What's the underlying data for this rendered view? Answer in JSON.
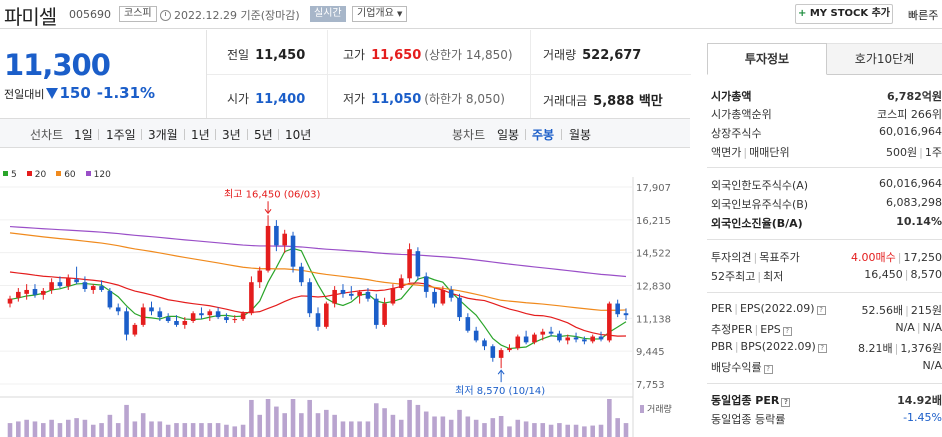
{
  "header": {
    "stock_name": "파미셀",
    "stock_code": "005690",
    "market": "코스피",
    "date_text": "2022.12.29  기준(장마감)",
    "realtime_label": "실시간",
    "overview_label": "기업개요",
    "mystock_label": "MY STOCK 추가",
    "quick_label": "빠른주",
    "plus": "+"
  },
  "price": {
    "current": "11,300",
    "change_label": "전일대비",
    "change_amount": "150",
    "change_percent": "-1.31%"
  },
  "quote": {
    "prev_close_label": "전일",
    "prev_close": "11,450",
    "high_label": "고가",
    "high": "11,650",
    "upper_limit_text": "(상한가 14,850)",
    "volume_label": "거래량",
    "volume": "522,677",
    "open_label": "시가",
    "open": "11,400",
    "low_label": "저가",
    "low": "11,050",
    "lower_limit_text": "(하한가 8,050)",
    "amount_label": "거래대금",
    "amount": "5,888 백만"
  },
  "periods": {
    "line_label": "선차트",
    "line_items": [
      "1일",
      "1주일",
      "3개월",
      "1년",
      "3년",
      "5년",
      "10년"
    ],
    "candle_label": "봉차트",
    "candle_items": [
      "일봉",
      "주봉",
      "월봉"
    ],
    "selected": "주봉"
  },
  "chart_data": {
    "type": "candlestick",
    "legend": [
      {
        "name": "5",
        "color": "#2aa52a"
      },
      {
        "name": "20",
        "color": "#e41d1d"
      },
      {
        "name": "60",
        "color": "#f08a1d"
      },
      {
        "name": "120",
        "color": "#9a4fc8"
      }
    ],
    "y_ticks": [
      "17,907",
      "16,215",
      "14,522",
      "12,830",
      "11,138",
      "9,445",
      "7,753"
    ],
    "ylim": [
      7753,
      17907
    ],
    "max_annotation": "최고 16,450 (06/03)",
    "min_annotation": "최저 8,570 (10/14)",
    "volume_label": "거래량",
    "candles": [
      {
        "o": 11900,
        "h": 12300,
        "l": 11700,
        "c": 12150
      },
      {
        "o": 12200,
        "h": 12700,
        "l": 12000,
        "c": 12500
      },
      {
        "o": 12400,
        "h": 12900,
        "l": 12100,
        "c": 12600
      },
      {
        "o": 12650,
        "h": 12900,
        "l": 12200,
        "c": 12350
      },
      {
        "o": 12350,
        "h": 12700,
        "l": 12100,
        "c": 12550
      },
      {
        "o": 12600,
        "h": 13200,
        "l": 12400,
        "c": 13000
      },
      {
        "o": 13000,
        "h": 13300,
        "l": 12700,
        "c": 12800
      },
      {
        "o": 12800,
        "h": 13400,
        "l": 12600,
        "c": 13200
      },
      {
        "o": 13150,
        "h": 13800,
        "l": 12900,
        "c": 13000
      },
      {
        "o": 13000,
        "h": 13300,
        "l": 12500,
        "c": 12650
      },
      {
        "o": 12600,
        "h": 12900,
        "l": 12400,
        "c": 12800
      },
      {
        "o": 12800,
        "h": 13100,
        "l": 12500,
        "c": 12600
      },
      {
        "o": 12550,
        "h": 12700,
        "l": 11600,
        "c": 11700
      },
      {
        "o": 11700,
        "h": 11900,
        "l": 11300,
        "c": 11500
      },
      {
        "o": 11500,
        "h": 11700,
        "l": 10000,
        "c": 10300
      },
      {
        "o": 10300,
        "h": 10900,
        "l": 10200,
        "c": 10800
      },
      {
        "o": 10800,
        "h": 11900,
        "l": 10700,
        "c": 11700
      },
      {
        "o": 11700,
        "h": 12000,
        "l": 11300,
        "c": 11500
      },
      {
        "o": 11500,
        "h": 11700,
        "l": 11000,
        "c": 11200
      },
      {
        "o": 11200,
        "h": 11400,
        "l": 10900,
        "c": 11000
      },
      {
        "o": 11000,
        "h": 11300,
        "l": 10700,
        "c": 10800
      },
      {
        "o": 10800,
        "h": 11200,
        "l": 10600,
        "c": 11000
      },
      {
        "o": 11000,
        "h": 11500,
        "l": 10900,
        "c": 11400
      },
      {
        "o": 11400,
        "h": 11700,
        "l": 11100,
        "c": 11300
      },
      {
        "o": 11300,
        "h": 11600,
        "l": 11000,
        "c": 11500
      },
      {
        "o": 11500,
        "h": 11700,
        "l": 11100,
        "c": 11200
      },
      {
        "o": 11200,
        "h": 11400,
        "l": 10900,
        "c": 11050
      },
      {
        "o": 11050,
        "h": 11300,
        "l": 10900,
        "c": 11100
      },
      {
        "o": 11100,
        "h": 11500,
        "l": 11000,
        "c": 11400
      },
      {
        "o": 11400,
        "h": 13300,
        "l": 11300,
        "c": 13000
      },
      {
        "o": 13000,
        "h": 13800,
        "l": 12700,
        "c": 13600
      },
      {
        "o": 13600,
        "h": 16450,
        "l": 13500,
        "c": 15900
      },
      {
        "o": 15900,
        "h": 16200,
        "l": 14600,
        "c": 14900
      },
      {
        "o": 14900,
        "h": 15700,
        "l": 14500,
        "c": 15500
      },
      {
        "o": 15400,
        "h": 15600,
        "l": 13500,
        "c": 13800
      },
      {
        "o": 13800,
        "h": 14000,
        "l": 12800,
        "c": 13000
      },
      {
        "o": 13000,
        "h": 13200,
        "l": 11200,
        "c": 11400
      },
      {
        "o": 11400,
        "h": 11700,
        "l": 10500,
        "c": 10700
      },
      {
        "o": 10700,
        "h": 12000,
        "l": 10600,
        "c": 11900
      },
      {
        "o": 11900,
        "h": 12800,
        "l": 11700,
        "c": 12600
      },
      {
        "o": 12600,
        "h": 12900,
        "l": 12200,
        "c": 12400
      },
      {
        "o": 12400,
        "h": 12800,
        "l": 12100,
        "c": 12300
      },
      {
        "o": 12300,
        "h": 12600,
        "l": 11900,
        "c": 12500
      },
      {
        "o": 12500,
        "h": 12700,
        "l": 12000,
        "c": 12150
      },
      {
        "o": 12150,
        "h": 12400,
        "l": 10600,
        "c": 10800
      },
      {
        "o": 10800,
        "h": 12200,
        "l": 10700,
        "c": 11900
      },
      {
        "o": 11900,
        "h": 12900,
        "l": 11800,
        "c": 12700
      },
      {
        "o": 12700,
        "h": 13400,
        "l": 12600,
        "c": 13200
      },
      {
        "o": 13200,
        "h": 15000,
        "l": 13000,
        "c": 14700
      },
      {
        "o": 14600,
        "h": 14800,
        "l": 13100,
        "c": 13300
      },
      {
        "o": 13300,
        "h": 13500,
        "l": 12200,
        "c": 12500
      },
      {
        "o": 12500,
        "h": 12700,
        "l": 11700,
        "c": 11900
      },
      {
        "o": 11900,
        "h": 12800,
        "l": 11800,
        "c": 12600
      },
      {
        "o": 12600,
        "h": 12800,
        "l": 12000,
        "c": 12200
      },
      {
        "o": 12200,
        "h": 12400,
        "l": 11000,
        "c": 11200
      },
      {
        "o": 11200,
        "h": 11400,
        "l": 10400,
        "c": 10500
      },
      {
        "o": 10500,
        "h": 10700,
        "l": 9900,
        "c": 10000
      },
      {
        "o": 10000,
        "h": 10100,
        "l": 9500,
        "c": 9700
      },
      {
        "o": 9700,
        "h": 9800,
        "l": 8900,
        "c": 9100
      },
      {
        "o": 9100,
        "h": 9600,
        "l": 8570,
        "c": 9500
      },
      {
        "o": 9500,
        "h": 9800,
        "l": 9400,
        "c": 9600
      },
      {
        "o": 9600,
        "h": 10300,
        "l": 9500,
        "c": 10200
      },
      {
        "o": 10200,
        "h": 10500,
        "l": 9800,
        "c": 9900
      },
      {
        "o": 9900,
        "h": 10400,
        "l": 9800,
        "c": 10300
      },
      {
        "o": 10300,
        "h": 10600,
        "l": 10000,
        "c": 10450
      },
      {
        "o": 10450,
        "h": 10700,
        "l": 10200,
        "c": 10350
      },
      {
        "o": 10350,
        "h": 10500,
        "l": 9900,
        "c": 10000
      },
      {
        "o": 10000,
        "h": 10300,
        "l": 9800,
        "c": 10150
      },
      {
        "o": 10150,
        "h": 10400,
        "l": 9900,
        "c": 10050
      },
      {
        "o": 10050,
        "h": 10200,
        "l": 9800,
        "c": 9950
      },
      {
        "o": 9950,
        "h": 10300,
        "l": 9850,
        "c": 10200
      },
      {
        "o": 10200,
        "h": 10450,
        "l": 9950,
        "c": 10050
      },
      {
        "o": 10000,
        "h": 12000,
        "l": 9900,
        "c": 11900
      },
      {
        "o": 11900,
        "h": 12100,
        "l": 11200,
        "c": 11350
      },
      {
        "o": 11400,
        "h": 11650,
        "l": 11050,
        "c": 11300
      }
    ]
  },
  "invest": {
    "tab_active": "투자정보",
    "tab_other": "호가10단계",
    "market_cap_label": "시가총액",
    "market_cap": "6,782억원",
    "cap_rank_label": "시가총액순위",
    "cap_rank": "코스피 266위",
    "shares_label": "상장주식수",
    "shares": "60,016,964",
    "face_label": "액면가",
    "lot_label": "매매단위",
    "face_value": "500원",
    "lot_value": "1주",
    "foreign_limit_label": "외국인한도주식수(A)",
    "foreign_limit": "60,016,964",
    "foreign_hold_label": "외국인보유주식수(B)",
    "foreign_hold": "6,083,298",
    "foreign_ratio_label": "외국인소진율(B/A)",
    "foreign_ratio": "10.14%",
    "opinion_label": "투자의견",
    "target_label": "목표주가",
    "opinion_value": "4.00매수",
    "target_value": "17,250",
    "wk52_high_label": "52주최고",
    "wk52_low_label": "최저",
    "wk52_high": "16,450",
    "wk52_low": "8,570",
    "per_label": "PER",
    "eps_label": "EPS(2022.09)",
    "per_value": "52.56배",
    "eps_value": "215원",
    "est_per_label": "추정PER",
    "est_eps_label": "EPS",
    "est_per": "N/A",
    "est_eps": "N/A",
    "pbr_label": "PBR",
    "bps_label": "BPS(2022.09)",
    "pbr_value": "8.21배",
    "bps_value": "1,376원",
    "dividend_label": "배당수익률",
    "dividend_value": "N/A",
    "industry_per_label": "동일업종 PER",
    "industry_per": "14.92배",
    "industry_rate_label": "동일업종 등락률",
    "industry_rate": "-1.45%",
    "help_glyph": "?",
    "separator": "|"
  }
}
